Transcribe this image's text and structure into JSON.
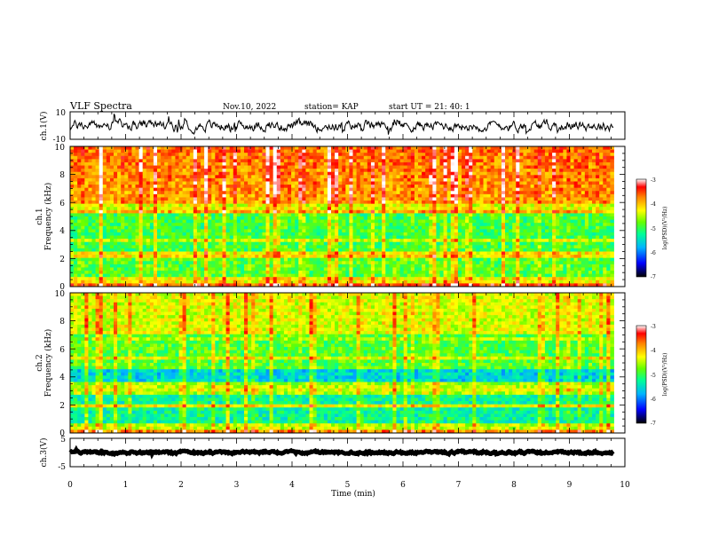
{
  "header": {
    "title": "VLF Spectra",
    "date": "Nov.10, 2022",
    "station": "station= KAP",
    "start": "start  UT =  21: 40: 1"
  },
  "chart_data": {
    "type": "heatmap",
    "time_axis": {
      "label": "Time (min)",
      "range": [
        0,
        10
      ],
      "ticks": [
        "0",
        "1",
        "2",
        "3",
        "4",
        "5",
        "6",
        "7",
        "8",
        "9",
        "10"
      ]
    },
    "panels": [
      {
        "type": "line",
        "ylabel": "ch.1(V)",
        "ylim": [
          -10,
          10
        ],
        "ticks": [
          "10",
          "-10"
        ],
        "series": {
          "name": "",
          "x_end": 9.8,
          "mean": 0,
          "amplitude": 3.5
        }
      },
      {
        "type": "heatmap",
        "ylabel_top": "ch.1",
        "ylabel": "Frequency (kHz)",
        "ylim": [
          0,
          10
        ],
        "ticks": [
          "0",
          "2",
          "4",
          "6",
          "8",
          "10"
        ],
        "x_end": 9.8,
        "colorbar": {
          "label": "log(PSD)(V²/Hz)",
          "range": [
            -7,
            -3
          ],
          "ticks": [
            "-3",
            "-4",
            "-5",
            "-6",
            "-7"
          ]
        },
        "bands": [
          {
            "f": 0.2,
            "v": -3.6
          },
          {
            "f": 0.5,
            "v": -4.5
          },
          {
            "f": 2.1,
            "v": -4.2
          },
          {
            "f": 2.3,
            "v": -4.3
          },
          {
            "f": 3.2,
            "v": -4.5
          },
          {
            "f": 5.3,
            "v": -4.0
          },
          {
            "f": 5.8,
            "v": -4.6
          }
        ]
      },
      {
        "type": "heatmap",
        "ylabel_top": "ch.2",
        "ylabel": "Frequency (kHz)",
        "ylim": [
          0,
          10
        ],
        "ticks": [
          "0",
          "2",
          "4",
          "6",
          "8",
          "10"
        ],
        "x_end": 9.8,
        "colorbar": {
          "label": "log(PSD)(V²/Hz)",
          "range": [
            -7,
            -3
          ],
          "ticks": [
            "-3",
            "-4",
            "-5",
            "-6",
            "-7"
          ]
        },
        "bands": [
          {
            "f": 0.2,
            "v": -3.8
          },
          {
            "f": 1.9,
            "v": -4.3
          },
          {
            "f": 3.1,
            "v": -4.4
          },
          {
            "f": 3.3,
            "v": -4.5
          },
          {
            "f": 5.4,
            "v": -4.4
          },
          {
            "f": 6.7,
            "v": -4.6
          }
        ]
      },
      {
        "type": "line",
        "ylabel": "ch.3(V)",
        "ylim": [
          -5,
          5
        ],
        "ticks": [
          "5",
          "-5"
        ],
        "series": {
          "name": "",
          "x_end": 9.8,
          "mean": 0,
          "amplitude": 0.4
        }
      }
    ]
  }
}
